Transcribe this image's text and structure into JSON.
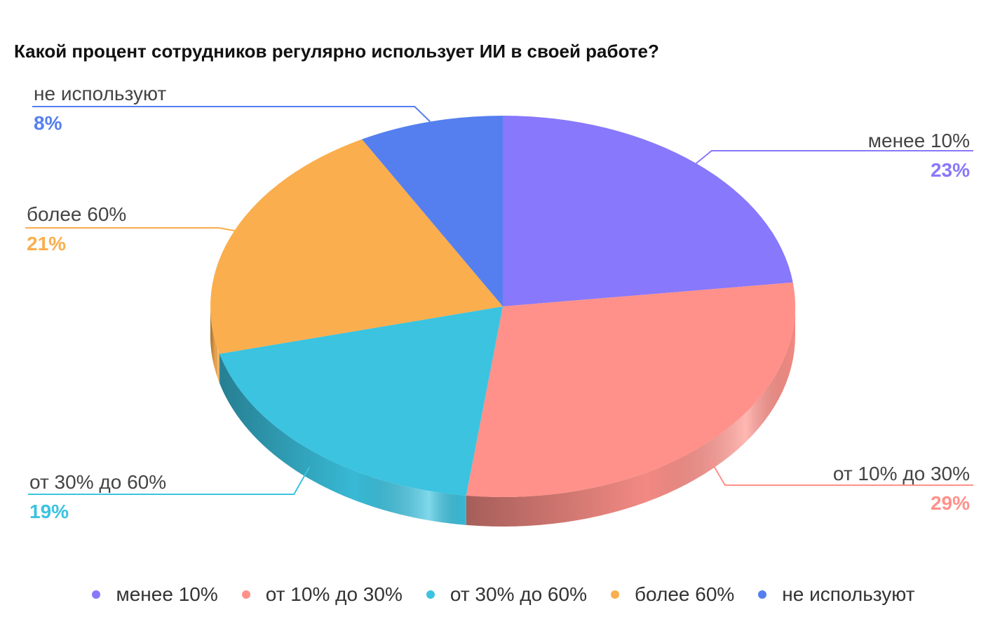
{
  "title": "Какой процент сотрудников регулярно использует ИИ в своей работе?",
  "chart_data": {
    "type": "pie",
    "title": "Какой процент сотрудников регулярно использует ИИ в своей работе?",
    "categories": [
      "менее 10%",
      "от 10% до 30%",
      "от 30% до 60%",
      "более 60%",
      "не используют"
    ],
    "values": [
      23,
      29,
      19,
      21,
      8
    ],
    "value_labels": [
      "23%",
      "29%",
      "19%",
      "21%",
      "8%"
    ],
    "colors": [
      "#8878FB",
      "#FF918A",
      "#3BC3E0",
      "#FBAE4D",
      "#557FEF"
    ],
    "legend_position": "bottom",
    "style": "3d"
  }
}
